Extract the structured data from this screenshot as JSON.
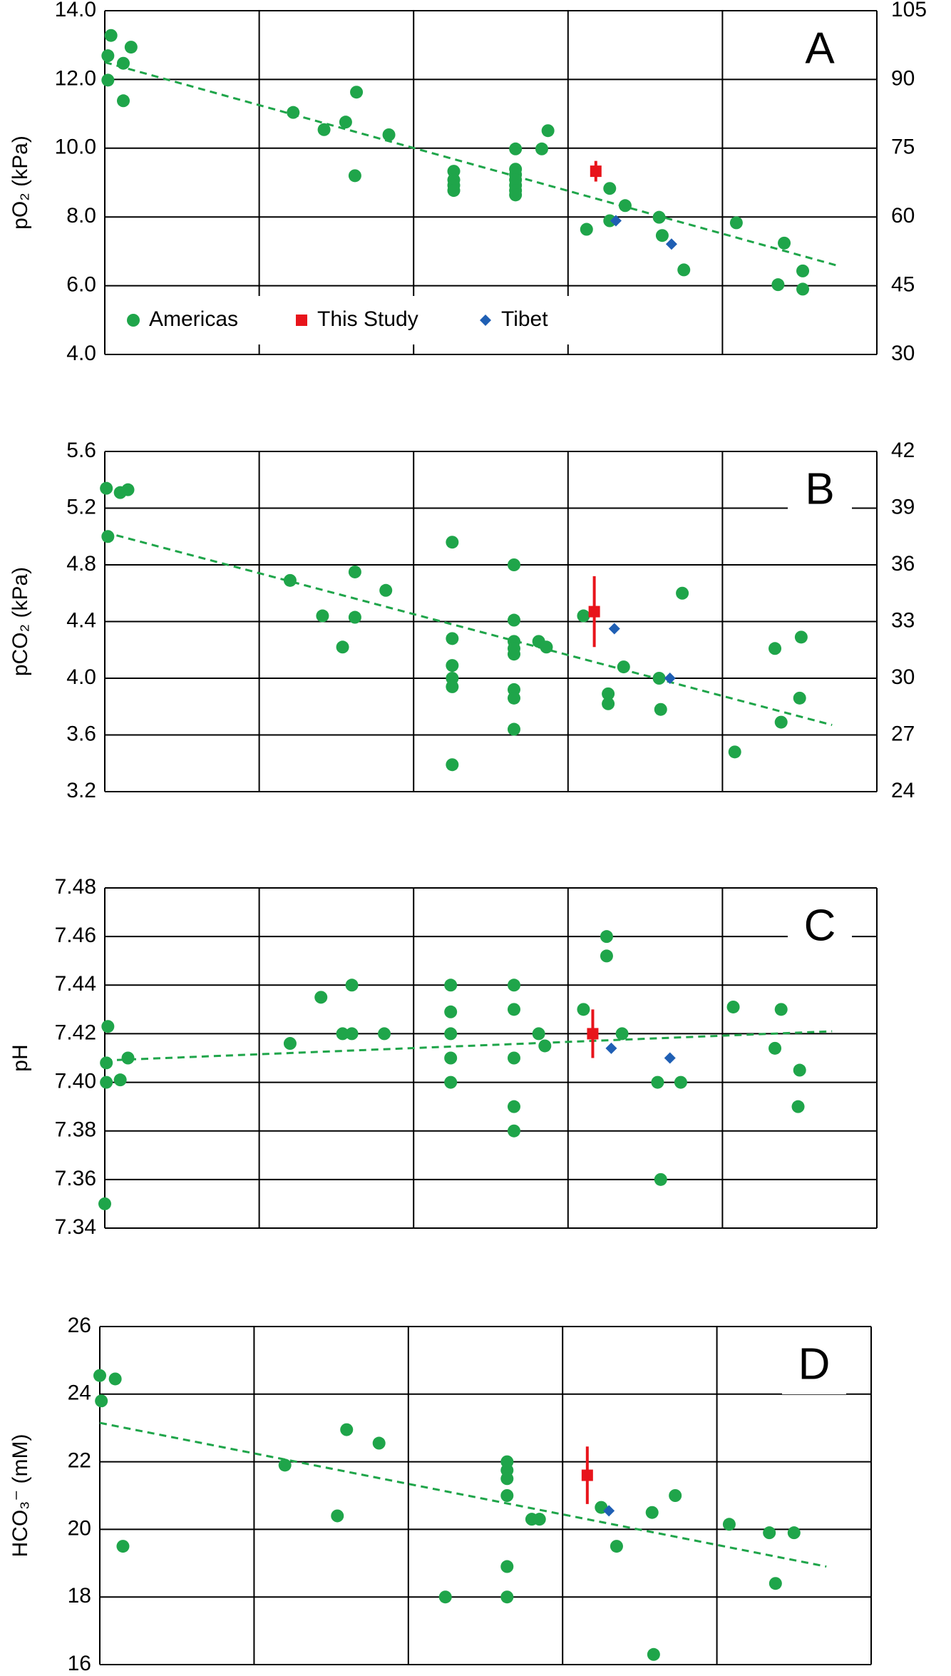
{
  "chart_data": [
    {
      "type": "scatter",
      "label": "A",
      "ylabel": "pO₂ (kPa)",
      "xlim": [
        0,
        5
      ],
      "xticks": [
        0,
        1,
        2,
        3,
        4,
        5
      ],
      "ylim": [
        4,
        14
      ],
      "yticks": [
        {
          "value": 4,
          "label": "4.0"
        },
        {
          "value": 6,
          "label": "6.0"
        },
        {
          "value": 8,
          "label": "8.0"
        },
        {
          "value": 10,
          "label": "10.0"
        },
        {
          "value": 12,
          "label": "12.0"
        },
        {
          "value": 14,
          "label": "14.0"
        }
      ],
      "y2lim": [
        30,
        105
      ],
      "y2ticks": [
        30,
        45,
        60,
        75,
        90,
        105
      ],
      "grid": true,
      "legend": "lower left",
      "series": [
        {
          "name": "Americas",
          "color": "#1fa54a",
          "marker": "circle",
          "x": [
            0.04,
            0.02,
            0.02,
            0.12,
            0.17,
            0.12,
            1.22,
            1.42,
            1.56,
            1.63,
            1.84,
            1.62,
            2.26,
            2.26,
            2.26,
            2.26,
            2.66,
            2.66,
            2.66,
            2.66,
            2.66,
            2.66,
            2.66,
            2.83,
            2.87,
            3.12,
            3.27,
            3.27,
            3.37,
            3.59,
            3.61,
            3.75,
            4.09,
            4.4,
            4.36,
            4.52,
            4.52
          ],
          "values": [
            13.28,
            12.69,
            11.98,
            12.47,
            12.94,
            11.38,
            11.04,
            10.54,
            10.76,
            11.63,
            10.39,
            9.2,
            9.33,
            9.08,
            8.92,
            8.77,
            9.98,
            9.39,
            9.23,
            9.08,
            8.92,
            8.77,
            8.64,
            9.98,
            10.51,
            7.64,
            8.83,
            7.89,
            8.33,
            7.99,
            7.46,
            6.46,
            7.83,
            7.24,
            6.03,
            6.43,
            5.9
          ]
        },
        {
          "name": "This Study",
          "color": "#e8141b",
          "marker": "square",
          "x": [
            3.18
          ],
          "values": [
            9.33
          ],
          "errors": [
            0.3
          ]
        },
        {
          "name": "Tibet",
          "color": "#1f5fb4",
          "marker": "diamond",
          "x": [
            3.31,
            3.67
          ],
          "values": [
            7.89,
            7.21
          ]
        }
      ],
      "trend": {
        "color": "#1fa54a",
        "x": [
          0,
          4.74
        ],
        "values": [
          12.5,
          6.59
        ]
      }
    },
    {
      "type": "scatter",
      "label": "B",
      "ylabel": "pCO₂ (kPa)",
      "xlim": [
        0,
        5
      ],
      "xticks": [
        0,
        1,
        2,
        3,
        4,
        5
      ],
      "ylim": [
        3.2,
        5.6
      ],
      "yticks": [
        3.2,
        3.6,
        {
          "value": 4,
          "label": "4.0"
        },
        4.4,
        4.8,
        5.2,
        5.6
      ],
      "y2lim": [
        24,
        42
      ],
      "y2ticks": [
        24,
        27,
        30,
        33,
        36,
        39,
        42
      ],
      "grid": true,
      "series": [
        {
          "color": "#1fa54a",
          "marker": "circle",
          "x": [
            0.01,
            0.1,
            0.15,
            0.02,
            1.2,
            1.41,
            1.62,
            1.62,
            1.54,
            1.82,
            2.25,
            2.25,
            2.25,
            2.25,
            2.25,
            2.25,
            2.65,
            2.65,
            2.65,
            2.65,
            2.65,
            2.65,
            2.65,
            2.65,
            2.81,
            2.86,
            3.1,
            3.26,
            3.26,
            3.36,
            3.59,
            3.6,
            3.74,
            4.08,
            4.34,
            4.38,
            4.51,
            4.5
          ],
          "values": [
            5.34,
            5.31,
            5.33,
            5.0,
            4.69,
            4.44,
            4.75,
            4.43,
            4.22,
            4.62,
            4.96,
            4.28,
            4.09,
            4.0,
            3.94,
            3.39,
            4.8,
            4.41,
            4.26,
            4.21,
            4.17,
            3.92,
            3.86,
            3.64,
            4.26,
            4.22,
            4.44,
            3.89,
            3.82,
            4.08,
            4.0,
            3.78,
            4.6,
            3.48,
            4.21,
            3.69,
            4.29,
            3.86
          ]
        },
        {
          "color": "#e8141b",
          "marker": "square",
          "x": [
            3.17
          ],
          "values": [
            4.47
          ],
          "errors": [
            0.25
          ]
        },
        {
          "color": "#1f5fb4",
          "marker": "diamond",
          "x": [
            3.3,
            3.66
          ],
          "values": [
            4.35,
            4.0
          ]
        }
      ],
      "trend": {
        "color": "#1fa54a",
        "x": [
          0,
          4.71
        ],
        "values": [
          5.03,
          3.67
        ]
      }
    },
    {
      "type": "scatter",
      "label": "C",
      "ylabel": "pH",
      "xlim": [
        0,
        5
      ],
      "xticks": [
        0,
        1,
        2,
        3,
        4,
        5
      ],
      "ylim": [
        7.34,
        7.48
      ],
      "yticks": [
        7.34,
        7.36,
        7.38,
        {
          "value": 7.4,
          "label": "7.40"
        },
        7.42,
        7.44,
        7.46,
        7.48
      ],
      "grid": true,
      "series": [
        {
          "color": "#1fa54a",
          "marker": "circle",
          "x": [
            0.02,
            0.01,
            0.01,
            0.0,
            0.1,
            0.15,
            1.2,
            1.4,
            1.6,
            1.54,
            1.6,
            1.81,
            2.24,
            2.24,
            2.24,
            2.24,
            2.24,
            2.65,
            2.65,
            2.65,
            2.65,
            2.65,
            2.81,
            2.85,
            3.1,
            3.25,
            3.25,
            3.35,
            3.58,
            3.73,
            3.6,
            4.07,
            4.34,
            4.38,
            4.5,
            4.49
          ],
          "values": [
            7.423,
            7.408,
            7.4,
            7.35,
            7.401,
            7.41,
            7.416,
            7.435,
            7.44,
            7.42,
            7.42,
            7.42,
            7.44,
            7.429,
            7.42,
            7.41,
            7.4,
            7.44,
            7.43,
            7.41,
            7.39,
            7.38,
            7.42,
            7.415,
            7.43,
            7.46,
            7.452,
            7.42,
            7.4,
            7.4,
            7.36,
            7.431,
            7.414,
            7.43,
            7.405,
            7.39
          ]
        },
        {
          "color": "#e8141b",
          "marker": "square",
          "x": [
            3.16
          ],
          "values": [
            7.42
          ],
          "errors": [
            0.01
          ]
        },
        {
          "color": "#1f5fb4",
          "marker": "diamond",
          "x": [
            3.28,
            3.66
          ],
          "values": [
            7.414,
            7.41
          ]
        }
      ],
      "trend": {
        "color": "#1fa54a",
        "x": [
          0,
          4.71
        ],
        "values": [
          7.409,
          7.421
        ]
      }
    },
    {
      "type": "scatter",
      "label": "D",
      "ylabel": "HCO₃⁻ (mM)",
      "xlim": [
        0,
        5
      ],
      "xticks": [
        0,
        1,
        2,
        3,
        4,
        5
      ],
      "ylim": [
        16,
        26
      ],
      "yticks": [
        16,
        18,
        20,
        22,
        24,
        26
      ],
      "grid": true,
      "series": [
        {
          "color": "#1fa54a",
          "marker": "circle",
          "x": [
            0.0,
            0.1,
            0.01,
            0.15,
            1.2,
            1.54,
            1.6,
            1.81,
            2.24,
            2.64,
            2.64,
            2.64,
            2.64,
            2.64,
            2.64,
            2.8,
            2.85,
            3.25,
            3.35,
            3.58,
            3.73,
            3.59,
            4.08,
            4.34,
            4.5,
            4.38
          ],
          "values": [
            24.55,
            24.45,
            23.8,
            19.5,
            21.9,
            20.4,
            22.95,
            22.55,
            18.0,
            22.0,
            21.75,
            21.5,
            21.0,
            18.9,
            18.0,
            20.3,
            20.3,
            20.65,
            19.5,
            20.5,
            21.0,
            16.3,
            20.15,
            19.9,
            19.9,
            18.4
          ]
        },
        {
          "color": "#e8141b",
          "marker": "square",
          "x": [
            3.16
          ],
          "values": [
            21.6
          ],
          "errors": [
            0.85
          ]
        },
        {
          "color": "#1f5fb4",
          "marker": "diamond",
          "x": [
            3.3
          ],
          "values": [
            20.55
          ]
        }
      ],
      "trend": {
        "color": "#1fa54a",
        "x": [
          0,
          4.71
        ],
        "values": [
          23.15,
          18.9
        ]
      }
    }
  ]
}
